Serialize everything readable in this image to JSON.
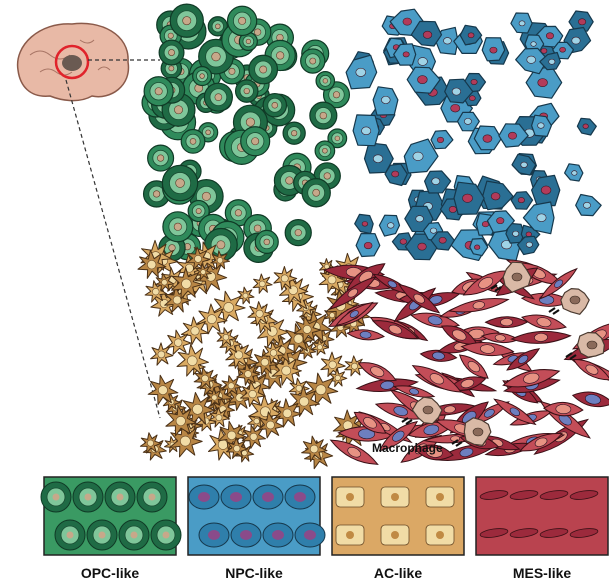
{
  "annotations": {
    "macrophage_label": "Macrophage"
  },
  "legend": {
    "items": [
      {
        "label": "OPC-like",
        "color": "#2e8a5a",
        "icon": "opc-like-cell-swatch"
      },
      {
        "label": "NPC-like",
        "color": "#3d8fb8",
        "icon": "npc-like-cell-swatch"
      },
      {
        "label": "AC-like",
        "color": "#d8a660",
        "icon": "ac-like-cell-swatch"
      },
      {
        "label": "MES-like",
        "color": "#b6404c",
        "icon": "mes-like-cell-swatch"
      }
    ]
  },
  "colors": {
    "opc_dark": "#1f6b45",
    "opc_light": "#7fc69a",
    "npc_dark": "#2a6f94",
    "npc_light": "#9fd3e6",
    "ac": "#d9aa63",
    "ac_light": "#f1dca6",
    "mes": "#c34d58",
    "mes_light": "#e79283",
    "brain": "#e8b9a6",
    "tumor_circle": "#e0232b",
    "macrophage": "#d9b9a6"
  },
  "icons": [
    "brain-icon",
    "macrophage-icon"
  ]
}
